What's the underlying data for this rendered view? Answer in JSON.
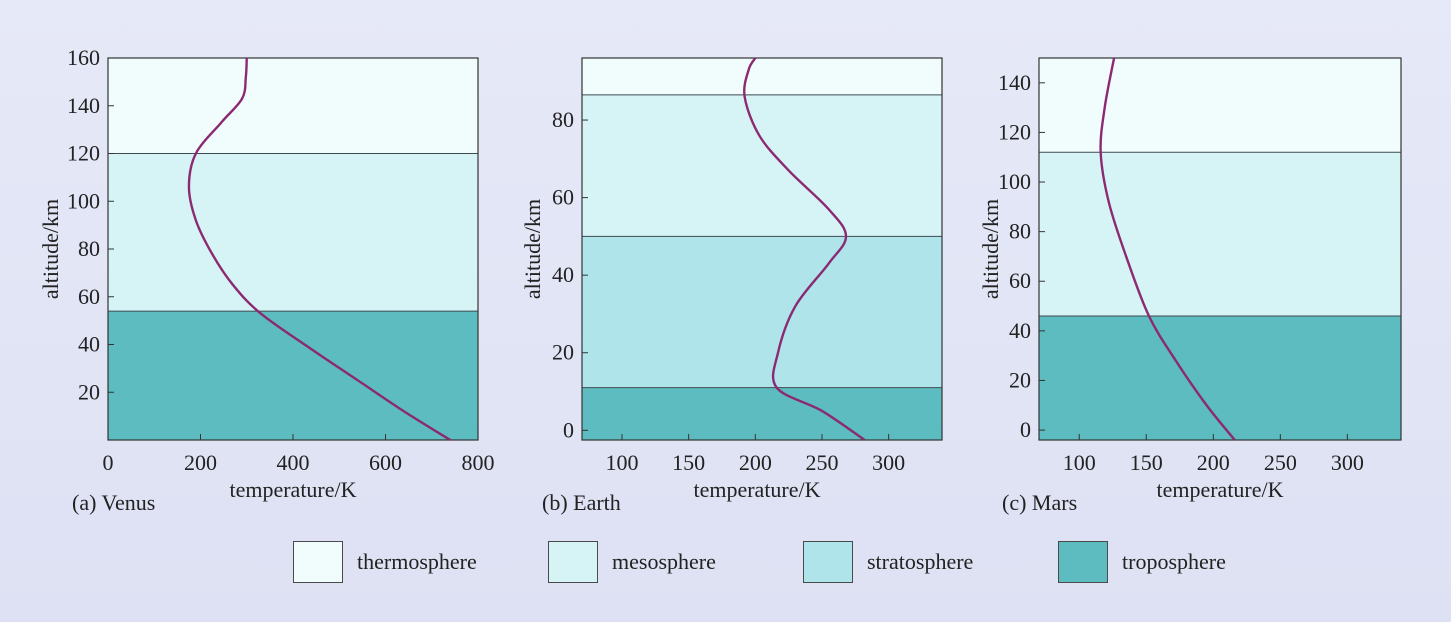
{
  "colors": {
    "thermosphere": "#f1fdfd",
    "mesosphere": "#d6f4f6",
    "stratosphere": "#aee4ea",
    "troposphere": "#5cbcbf",
    "curve": "#8b2a72",
    "boundary": "#3e4a52"
  },
  "legend": [
    {
      "key": "thermosphere",
      "label": "thermosphere"
    },
    {
      "key": "mesosphere",
      "label": "mesosphere"
    },
    {
      "key": "stratosphere",
      "label": "stratosphere"
    },
    {
      "key": "troposphere",
      "label": "troposphere"
    }
  ],
  "chart_data": [
    {
      "type": "line",
      "caption": "(a) Venus",
      "xlabel": "temperature/K",
      "ylabel": "altitude/km",
      "xlim": [
        0,
        800
      ],
      "ylim": [
        0,
        160
      ],
      "xticks": [
        0,
        200,
        400,
        600,
        800
      ],
      "yticks": [
        20,
        40,
        60,
        80,
        100,
        120,
        140,
        160
      ],
      "layers": [
        {
          "name": "troposphere",
          "from": 0,
          "to": 54
        },
        {
          "name": "mesosphere",
          "from": 54,
          "to": 120
        },
        {
          "name": "thermosphere",
          "from": 120,
          "to": 160
        }
      ],
      "profile": [
        {
          "x": 740,
          "y": 0
        },
        {
          "x": 640,
          "y": 12
        },
        {
          "x": 540,
          "y": 25
        },
        {
          "x": 440,
          "y": 38
        },
        {
          "x": 330,
          "y": 53
        },
        {
          "x": 270,
          "y": 65
        },
        {
          "x": 225,
          "y": 78
        },
        {
          "x": 190,
          "y": 92
        },
        {
          "x": 175,
          "y": 106
        },
        {
          "x": 190,
          "y": 120
        },
        {
          "x": 245,
          "y": 133
        },
        {
          "x": 290,
          "y": 143
        },
        {
          "x": 298,
          "y": 152
        },
        {
          "x": 300,
          "y": 160
        }
      ]
    },
    {
      "type": "line",
      "caption": "(b) Earth",
      "xlabel": "temperature/K",
      "ylabel": "altitude/km",
      "xlim": [
        70,
        340
      ],
      "ylim": [
        -2.5,
        96
      ],
      "xticks": [
        100,
        150,
        200,
        250,
        300
      ],
      "yticks": [
        0,
        20,
        40,
        60,
        80
      ],
      "layers": [
        {
          "name": "troposphere",
          "from": -2.5,
          "to": 11
        },
        {
          "name": "stratosphere",
          "from": 11,
          "to": 50
        },
        {
          "name": "mesosphere",
          "from": 50,
          "to": 86.5
        },
        {
          "name": "thermosphere",
          "from": 86.5,
          "to": 96
        }
      ],
      "profile": [
        {
          "x": 282,
          "y": -2.5
        },
        {
          "x": 250,
          "y": 5
        },
        {
          "x": 216,
          "y": 11
        },
        {
          "x": 217,
          "y": 20
        },
        {
          "x": 230,
          "y": 32
        },
        {
          "x": 255,
          "y": 43
        },
        {
          "x": 268,
          "y": 50
        },
        {
          "x": 255,
          "y": 57
        },
        {
          "x": 225,
          "y": 67
        },
        {
          "x": 203,
          "y": 76
        },
        {
          "x": 192,
          "y": 86
        },
        {
          "x": 195,
          "y": 93
        },
        {
          "x": 200,
          "y": 96
        }
      ]
    },
    {
      "type": "line",
      "caption": "(c) Mars",
      "xlabel": "temperature/K",
      "ylabel": "altitude/km",
      "xlim": [
        70,
        340
      ],
      "ylim": [
        -4,
        150
      ],
      "xticks": [
        100,
        150,
        200,
        250,
        300
      ],
      "yticks": [
        0,
        20,
        40,
        60,
        80,
        100,
        120,
        140
      ],
      "layers": [
        {
          "name": "troposphere",
          "from": -4,
          "to": 46
        },
        {
          "name": "mesosphere",
          "from": 46,
          "to": 112
        },
        {
          "name": "thermosphere",
          "from": 112,
          "to": 150
        }
      ],
      "profile": [
        {
          "x": 216,
          "y": -4
        },
        {
          "x": 195,
          "y": 10
        },
        {
          "x": 172,
          "y": 28
        },
        {
          "x": 152,
          "y": 46
        },
        {
          "x": 135,
          "y": 70
        },
        {
          "x": 122,
          "y": 92
        },
        {
          "x": 116,
          "y": 112
        },
        {
          "x": 119,
          "y": 130
        },
        {
          "x": 126,
          "y": 150
        }
      ]
    }
  ]
}
